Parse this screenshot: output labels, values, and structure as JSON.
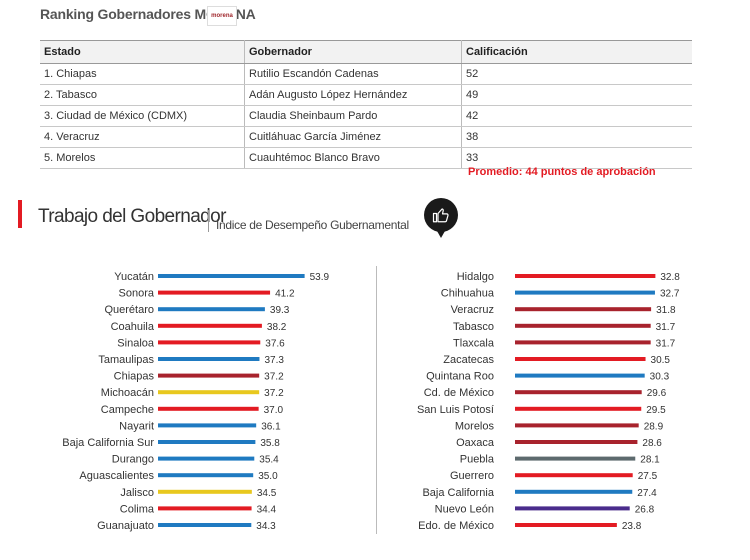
{
  "header": {
    "title": "Ranking Gobernadores MORENA",
    "logo_text": "morena"
  },
  "ranking_table": {
    "columns": [
      "Estado",
      "Gobernador",
      "Calificación"
    ],
    "rows": [
      [
        "1. Chiapas",
        "Rutilio Escandón Cadenas",
        "52"
      ],
      [
        "2. Tabasco",
        "Adán Augusto López Hernández",
        "49"
      ],
      [
        "3. Ciudad de México (CDMX)",
        "Claudia Sheinbaum Pardo",
        "42"
      ],
      [
        "4. Veracruz",
        "Cuitláhuac García Jiménez",
        "38"
      ],
      [
        "5. Morelos",
        "Cuauhtémoc Blanco Bravo",
        "33"
      ]
    ],
    "promedio": "Promedio: 44 puntos de aprobación"
  },
  "section": {
    "title": "Trabajo del Gobernador",
    "subtitle": "Índice de Desempeño Gubernamental",
    "badge_icon": "thumbs-up-icon"
  },
  "colors": {
    "red": "#e31b23",
    "blue": "#1f7ac1",
    "yellow": "#e8c81e",
    "darkred": "#a8232d",
    "gray": "#5d6a6e",
    "purple": "#4a2c8c",
    "accent": "#e31b23"
  },
  "chart_data": [
    {
      "type": "bar",
      "orientation": "horizontal",
      "title": "",
      "xlim": [
        0,
        55
      ],
      "categories": [
        "Yucatán",
        "Sonora",
        "Querétaro",
        "Coahuila",
        "Sinaloa",
        "Tamaulipas",
        "Chiapas",
        "Michoacán",
        "Campeche",
        "Nayarit",
        "Baja California Sur",
        "Durango",
        "Aguascalientes",
        "Jalisco",
        "Colima",
        "Guanajuato"
      ],
      "values": [
        53.9,
        41.2,
        39.3,
        38.2,
        37.6,
        37.3,
        37.2,
        37.2,
        37.0,
        36.1,
        35.8,
        35.4,
        35.0,
        34.5,
        34.4,
        34.3
      ],
      "value_labels": [
        "53.9",
        "41.2",
        "39.3",
        "38.2",
        "37.6",
        "37.3",
        "37.2",
        "37.2",
        "37.0",
        "36.1",
        "35.8",
        "35.4",
        "35.0",
        "34.5",
        "34.4",
        "34.3"
      ],
      "bar_colors": [
        "blue",
        "red",
        "blue",
        "red",
        "red",
        "blue",
        "darkred",
        "yellow",
        "red",
        "blue",
        "blue",
        "blue",
        "blue",
        "yellow",
        "red",
        "blue"
      ]
    },
    {
      "type": "bar",
      "orientation": "horizontal",
      "title": "",
      "xlim": [
        0,
        55
      ],
      "categories": [
        "Hidalgo",
        "Chihuahua",
        "Veracruz",
        "Tabasco",
        "Tlaxcala",
        "Zacatecas",
        "Quintana Roo",
        "Cd. de México",
        "San Luis Potosí",
        "Morelos",
        "Oaxaca",
        "Puebla",
        "Guerrero",
        "Baja California",
        "Nuevo León",
        "Edo. de México"
      ],
      "values": [
        32.8,
        32.7,
        31.8,
        31.7,
        31.7,
        30.5,
        30.3,
        29.6,
        29.5,
        28.9,
        28.6,
        28.1,
        27.5,
        27.4,
        26.8,
        23.8
      ],
      "value_labels": [
        "32.8",
        "32.7",
        "31.8",
        "31.7",
        "31.7",
        "30.5",
        "30.3",
        "29.6",
        "29.5",
        "28.9",
        "28.6",
        "28.1",
        "27.5",
        "27.4",
        "26.8",
        "23.8"
      ],
      "bar_colors": [
        "red",
        "blue",
        "darkred",
        "darkred",
        "darkred",
        "red",
        "blue",
        "darkred",
        "red",
        "darkred",
        "darkred",
        "gray",
        "red",
        "blue",
        "purple",
        "red"
      ]
    }
  ]
}
